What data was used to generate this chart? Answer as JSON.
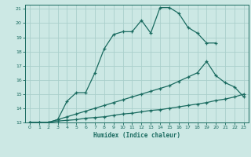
{
  "xlabel": "Humidex (Indice chaleur)",
  "bg_color": "#cce8e4",
  "grid_color": "#aacfcb",
  "line_color": "#1a6b60",
  "xlim": [
    -0.5,
    23.5
  ],
  "ylim": [
    13,
    21.3
  ],
  "xticks": [
    0,
    1,
    2,
    3,
    4,
    5,
    6,
    7,
    8,
    9,
    10,
    11,
    12,
    13,
    14,
    15,
    16,
    17,
    18,
    19,
    20,
    21,
    22,
    23
  ],
  "yticks": [
    13,
    14,
    15,
    16,
    17,
    18,
    19,
    20,
    21
  ],
  "line1_x": [
    0,
    1,
    2,
    3,
    4,
    5,
    6,
    7,
    8,
    9,
    10,
    11,
    12,
    13,
    14,
    15,
    16,
    17,
    18,
    19,
    20
  ],
  "line1_y": [
    13,
    13,
    13,
    13.2,
    14.5,
    15.1,
    15.1,
    16.5,
    18.2,
    19.2,
    19.4,
    19.4,
    20.2,
    19.3,
    21.1,
    21.1,
    20.7,
    19.7,
    19.3,
    18.6,
    18.6
  ],
  "line2_x": [
    0,
    1,
    2,
    3,
    4,
    5,
    6,
    7,
    8,
    9,
    10,
    11,
    12,
    13,
    14,
    15,
    16,
    17,
    18,
    19,
    20,
    21,
    22,
    23
  ],
  "line2_y": [
    13,
    13,
    13,
    13.2,
    13.4,
    13.6,
    13.8,
    14.0,
    14.2,
    14.4,
    14.6,
    14.8,
    15.0,
    15.2,
    15.4,
    15.6,
    15.9,
    16.2,
    16.5,
    17.3,
    16.3,
    15.8,
    15.5,
    14.8
  ],
  "line3_x": [
    0,
    1,
    2,
    3,
    4,
    5,
    6,
    7,
    8,
    9,
    10,
    11,
    12,
    13,
    14,
    15,
    16,
    17,
    18,
    19,
    20,
    21,
    22,
    23
  ],
  "line3_y": [
    13,
    13,
    13,
    13.1,
    13.15,
    13.2,
    13.3,
    13.35,
    13.4,
    13.5,
    13.6,
    13.65,
    13.75,
    13.85,
    13.9,
    14.0,
    14.1,
    14.2,
    14.3,
    14.4,
    14.55,
    14.65,
    14.8,
    15.0
  ]
}
